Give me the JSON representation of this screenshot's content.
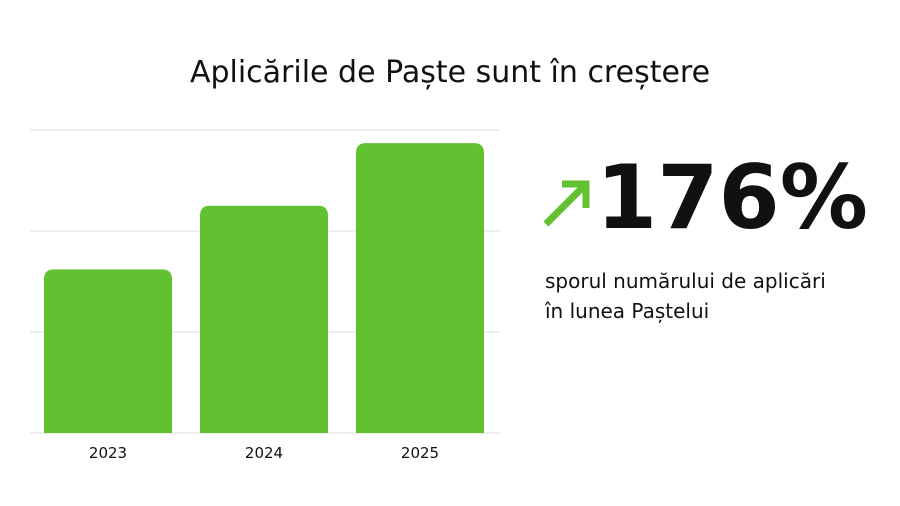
{
  "chart_data": {
    "type": "bar",
    "title": "Aplicările de Paște sunt în creștere",
    "categories": [
      "2023",
      "2024",
      "2025"
    ],
    "values": [
      1.62,
      2.25,
      2.87
    ],
    "color": "#62c130",
    "ylim": [
      0,
      3
    ],
    "yticks": [
      0,
      1,
      2,
      3
    ],
    "grid": true,
    "annotations": [
      "176%",
      "sporul numărului de aplicări",
      "în lunea Paștelui"
    ]
  }
}
